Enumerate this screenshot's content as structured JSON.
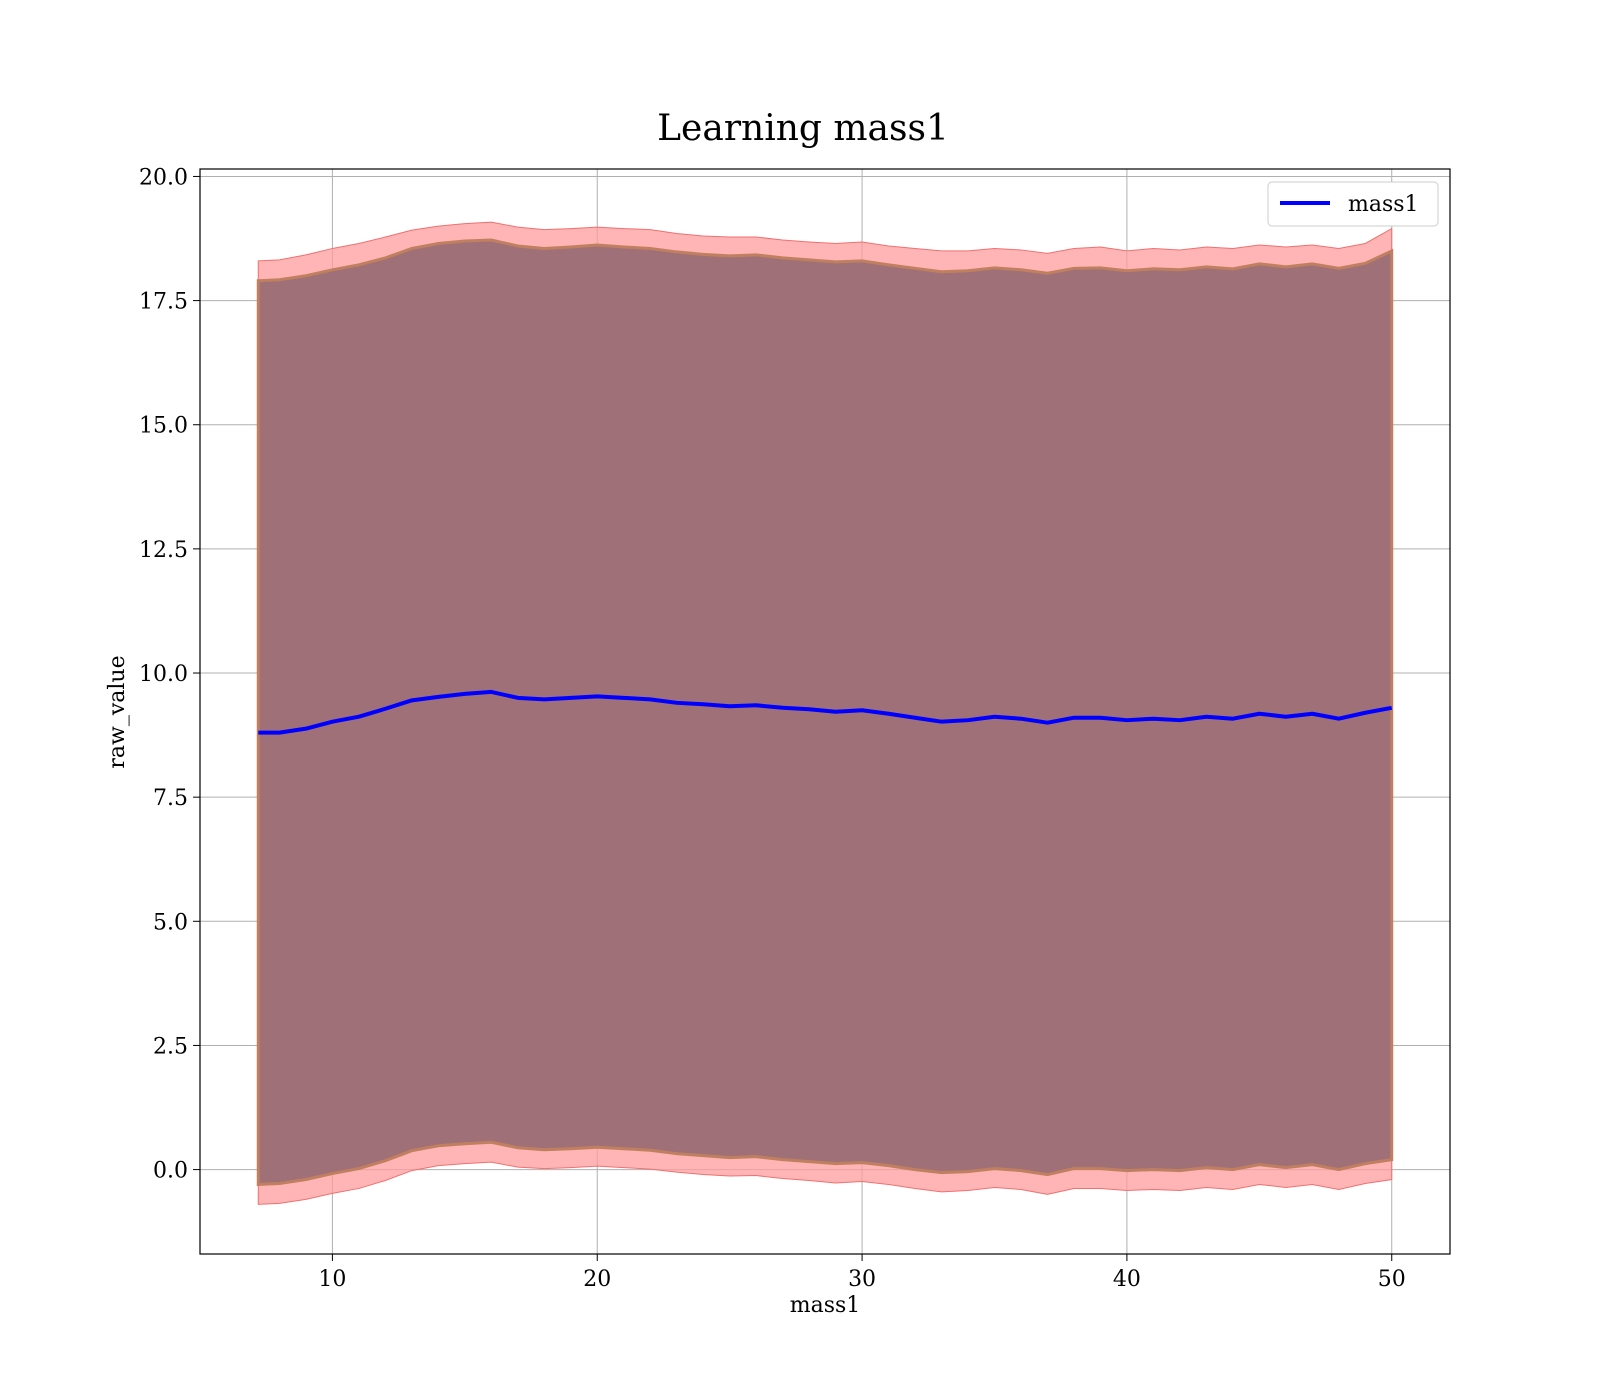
{
  "chart_data": {
    "type": "area",
    "title": "Learning mass1",
    "xlabel": "mass1",
    "ylabel": "raw_value",
    "xlim": [
      5.0,
      52.2
    ],
    "ylim": [
      -1.7,
      20.15
    ],
    "xticks": [
      10,
      20,
      30,
      40,
      50
    ],
    "xtick_labels": [
      "10",
      "20",
      "30",
      "40",
      "50"
    ],
    "yticks": [
      0.0,
      2.5,
      5.0,
      7.5,
      10.0,
      12.5,
      15.0,
      17.5,
      20.0
    ],
    "ytick_labels": [
      "0.0",
      "2.5",
      "5.0",
      "7.5",
      "10.0",
      "12.5",
      "15.0",
      "17.5",
      "20.0"
    ],
    "grid": true,
    "legend": {
      "position": "top-right",
      "entries": [
        {
          "label": "mass1",
          "color": "#0000ff"
        }
      ]
    },
    "colors": {
      "line": "#0000ff",
      "outer_band": "#ff9c9c",
      "inner_band": "#a07078",
      "band_edge": "#c08060"
    },
    "series": [
      {
        "name": "mass1",
        "x": [
          7.2,
          8,
          9,
          10,
          11,
          12,
          13,
          14,
          15,
          16,
          17,
          18,
          19,
          20,
          21,
          22,
          23,
          24,
          25,
          26,
          27,
          28,
          29,
          30,
          31,
          32,
          33,
          34,
          35,
          36,
          37,
          38,
          39,
          40,
          41,
          42,
          43,
          44,
          45,
          46,
          47,
          48,
          49,
          50
        ],
        "y": [
          8.8,
          8.8,
          8.88,
          9.02,
          9.12,
          9.28,
          9.45,
          9.52,
          9.58,
          9.62,
          9.5,
          9.47,
          9.5,
          9.53,
          9.5,
          9.47,
          9.4,
          9.37,
          9.33,
          9.35,
          9.3,
          9.27,
          9.22,
          9.25,
          9.18,
          9.1,
          9.02,
          9.05,
          9.12,
          9.08,
          9.0,
          9.1,
          9.1,
          9.05,
          9.08,
          9.05,
          9.12,
          9.08,
          9.18,
          9.12,
          9.18,
          9.08,
          9.2,
          9.3
        ]
      }
    ],
    "bands": [
      {
        "name": "outer",
        "upper": [
          18.3,
          18.32,
          18.42,
          18.55,
          18.65,
          18.78,
          18.92,
          19.0,
          19.05,
          19.08,
          18.98,
          18.93,
          18.95,
          18.98,
          18.95,
          18.93,
          18.85,
          18.8,
          18.78,
          18.78,
          18.72,
          18.68,
          18.65,
          18.68,
          18.6,
          18.55,
          18.5,
          18.5,
          18.55,
          18.52,
          18.45,
          18.55,
          18.58,
          18.5,
          18.55,
          18.52,
          18.58,
          18.55,
          18.62,
          18.58,
          18.62,
          18.55,
          18.65,
          18.95
        ],
        "lower": [
          -0.7,
          -0.68,
          -0.6,
          -0.48,
          -0.38,
          -0.22,
          -0.02,
          0.08,
          0.12,
          0.15,
          0.05,
          0.02,
          0.04,
          0.07,
          0.04,
          0.01,
          -0.05,
          -0.1,
          -0.13,
          -0.12,
          -0.18,
          -0.22,
          -0.27,
          -0.24,
          -0.3,
          -0.38,
          -0.45,
          -0.42,
          -0.36,
          -0.4,
          -0.5,
          -0.38,
          -0.38,
          -0.42,
          -0.4,
          -0.42,
          -0.36,
          -0.4,
          -0.3,
          -0.36,
          -0.3,
          -0.4,
          -0.28,
          -0.2
        ]
      },
      {
        "name": "inner",
        "upper": [
          17.9,
          17.92,
          18.0,
          18.12,
          18.22,
          18.36,
          18.55,
          18.65,
          18.7,
          18.72,
          18.6,
          18.55,
          18.58,
          18.62,
          18.58,
          18.55,
          18.48,
          18.43,
          18.4,
          18.42,
          18.36,
          18.32,
          18.28,
          18.3,
          18.22,
          18.15,
          18.08,
          18.1,
          18.16,
          18.12,
          18.05,
          18.15,
          18.16,
          18.1,
          18.14,
          18.12,
          18.18,
          18.14,
          18.24,
          18.18,
          18.24,
          18.15,
          18.25,
          18.5
        ],
        "lower": [
          -0.3,
          -0.28,
          -0.2,
          -0.08,
          0.02,
          0.18,
          0.38,
          0.48,
          0.52,
          0.55,
          0.44,
          0.4,
          0.42,
          0.45,
          0.42,
          0.39,
          0.32,
          0.28,
          0.24,
          0.26,
          0.2,
          0.16,
          0.12,
          0.14,
          0.08,
          0.0,
          -0.06,
          -0.04,
          0.02,
          -0.02,
          -0.1,
          0.02,
          0.02,
          -0.02,
          0.0,
          -0.02,
          0.04,
          0.0,
          0.1,
          0.04,
          0.1,
          0.0,
          0.12,
          0.2
        ]
      }
    ]
  }
}
